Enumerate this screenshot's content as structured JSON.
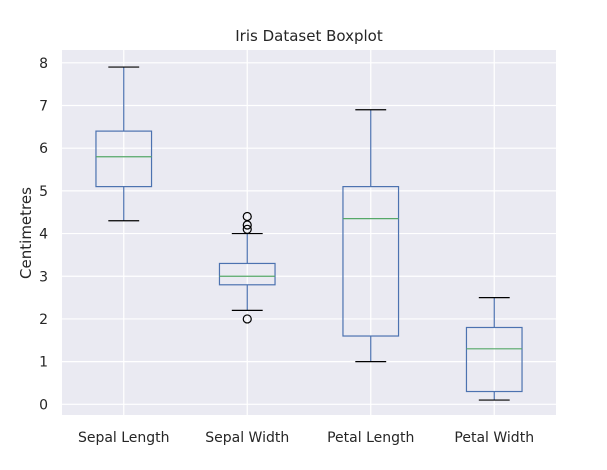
{
  "chart_data": {
    "type": "boxplot",
    "title": "Iris Dataset Boxplot",
    "xlabel": "",
    "ylabel": "Centimetres",
    "ylim": [
      -0.25,
      8.3
    ],
    "yticks": [
      0,
      1,
      2,
      3,
      4,
      5,
      6,
      7,
      8
    ],
    "grid": true,
    "legend": "none",
    "colors": {
      "background": "#eaeaf2",
      "grid": "#ffffff",
      "box": "#4c72b0",
      "median": "#55a868",
      "whisker_cap": "#000000",
      "flier": "#000000"
    },
    "categories": [
      "Sepal Length",
      "Sepal Width",
      "Petal Length",
      "Petal Width"
    ],
    "boxes": [
      {
        "category": "Sepal Length",
        "whisker_low": 4.3,
        "q1": 5.1,
        "median": 5.8,
        "q3": 6.4,
        "whisker_high": 7.9,
        "outliers": []
      },
      {
        "category": "Sepal Width",
        "whisker_low": 2.2,
        "q1": 2.8,
        "median": 3.0,
        "q3": 3.3,
        "whisker_high": 4.0,
        "outliers": [
          4.1,
          4.2,
          4.4,
          2.0
        ]
      },
      {
        "category": "Petal Length",
        "whisker_low": 1.0,
        "q1": 1.6,
        "median": 4.35,
        "q3": 5.1,
        "whisker_high": 6.9,
        "outliers": []
      },
      {
        "category": "Petal Width",
        "whisker_low": 0.1,
        "q1": 0.3,
        "median": 1.3,
        "q3": 1.8,
        "whisker_high": 2.5,
        "outliers": []
      }
    ]
  }
}
